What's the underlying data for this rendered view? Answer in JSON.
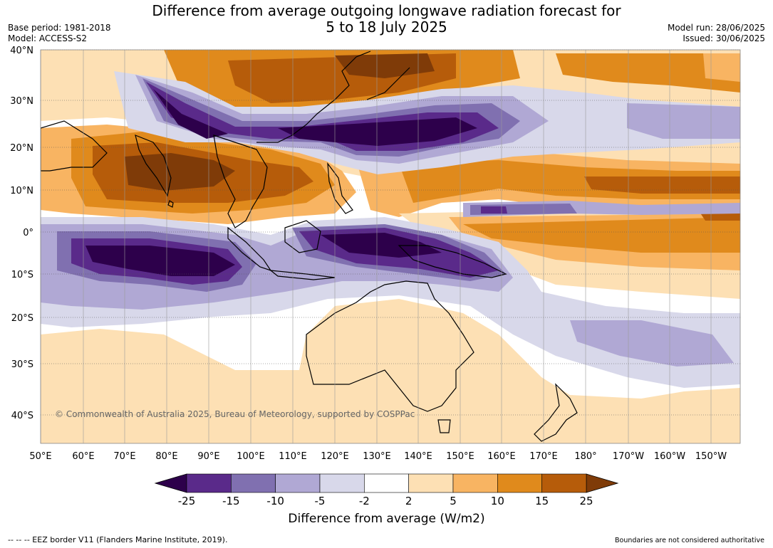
{
  "title_line1": "Difference from average outgoing longwave radiation forecast for",
  "title_line2": "5 to 18 July 2025",
  "base_period": "Base period: 1981-2018",
  "model": "Model: ACCESS-S2",
  "model_run": "Model run: 28/06/2025",
  "issued": "Issued: 30/06/2025",
  "lat_labels": [
    "40°N",
    "30°N",
    "20°N",
    "10°N",
    "0°",
    "10°S",
    "20°S",
    "30°S",
    "40°S"
  ],
  "lon_labels": [
    "50°E",
    "60°E",
    "70°E",
    "80°E",
    "90°E",
    "100°E",
    "110°E",
    "120°E",
    "130°E",
    "140°E",
    "150°E",
    "160°E",
    "170°E",
    "180°",
    "170°W",
    "160°W",
    "150°W"
  ],
  "copyright": "© Commonwealth of Australia 2025, Bureau of Meteorology, supported by COSPPac",
  "colorbar": {
    "ticks": [
      "-25",
      "-15",
      "-10",
      "-5",
      "-2",
      "2",
      "5",
      "10",
      "15",
      "25"
    ],
    "colors": [
      "#5a2a8a",
      "#8070b0",
      "#b0a8d4",
      "#d8d8ea",
      "#ffffff",
      "#fde0b4",
      "#f8b462",
      "#e08a1c",
      "#b65c0a"
    ],
    "low_extend_color": "#2d004b",
    "high_extend_color": "#7f3b08",
    "label": "Difference from average (W/m2)"
  },
  "legend_note": "--  --  -- EEZ border V11 (Flanders Marine Institute, 2019).",
  "disclaimer": "Boundaries are not considered authoritative",
  "colors": {
    "strong_negative": "#2d004b",
    "negative": "#5a2a8a",
    "mod_negative": "#8070b0",
    "weak_negative": "#b0a8d4",
    "slight_negative": "#d8d8ea",
    "slight_positive": "#fde0b4",
    "weak_positive": "#f8b462",
    "positive": "#e08a1c",
    "strong_positive": "#b65c0a",
    "extreme_positive": "#7f3b08"
  }
}
